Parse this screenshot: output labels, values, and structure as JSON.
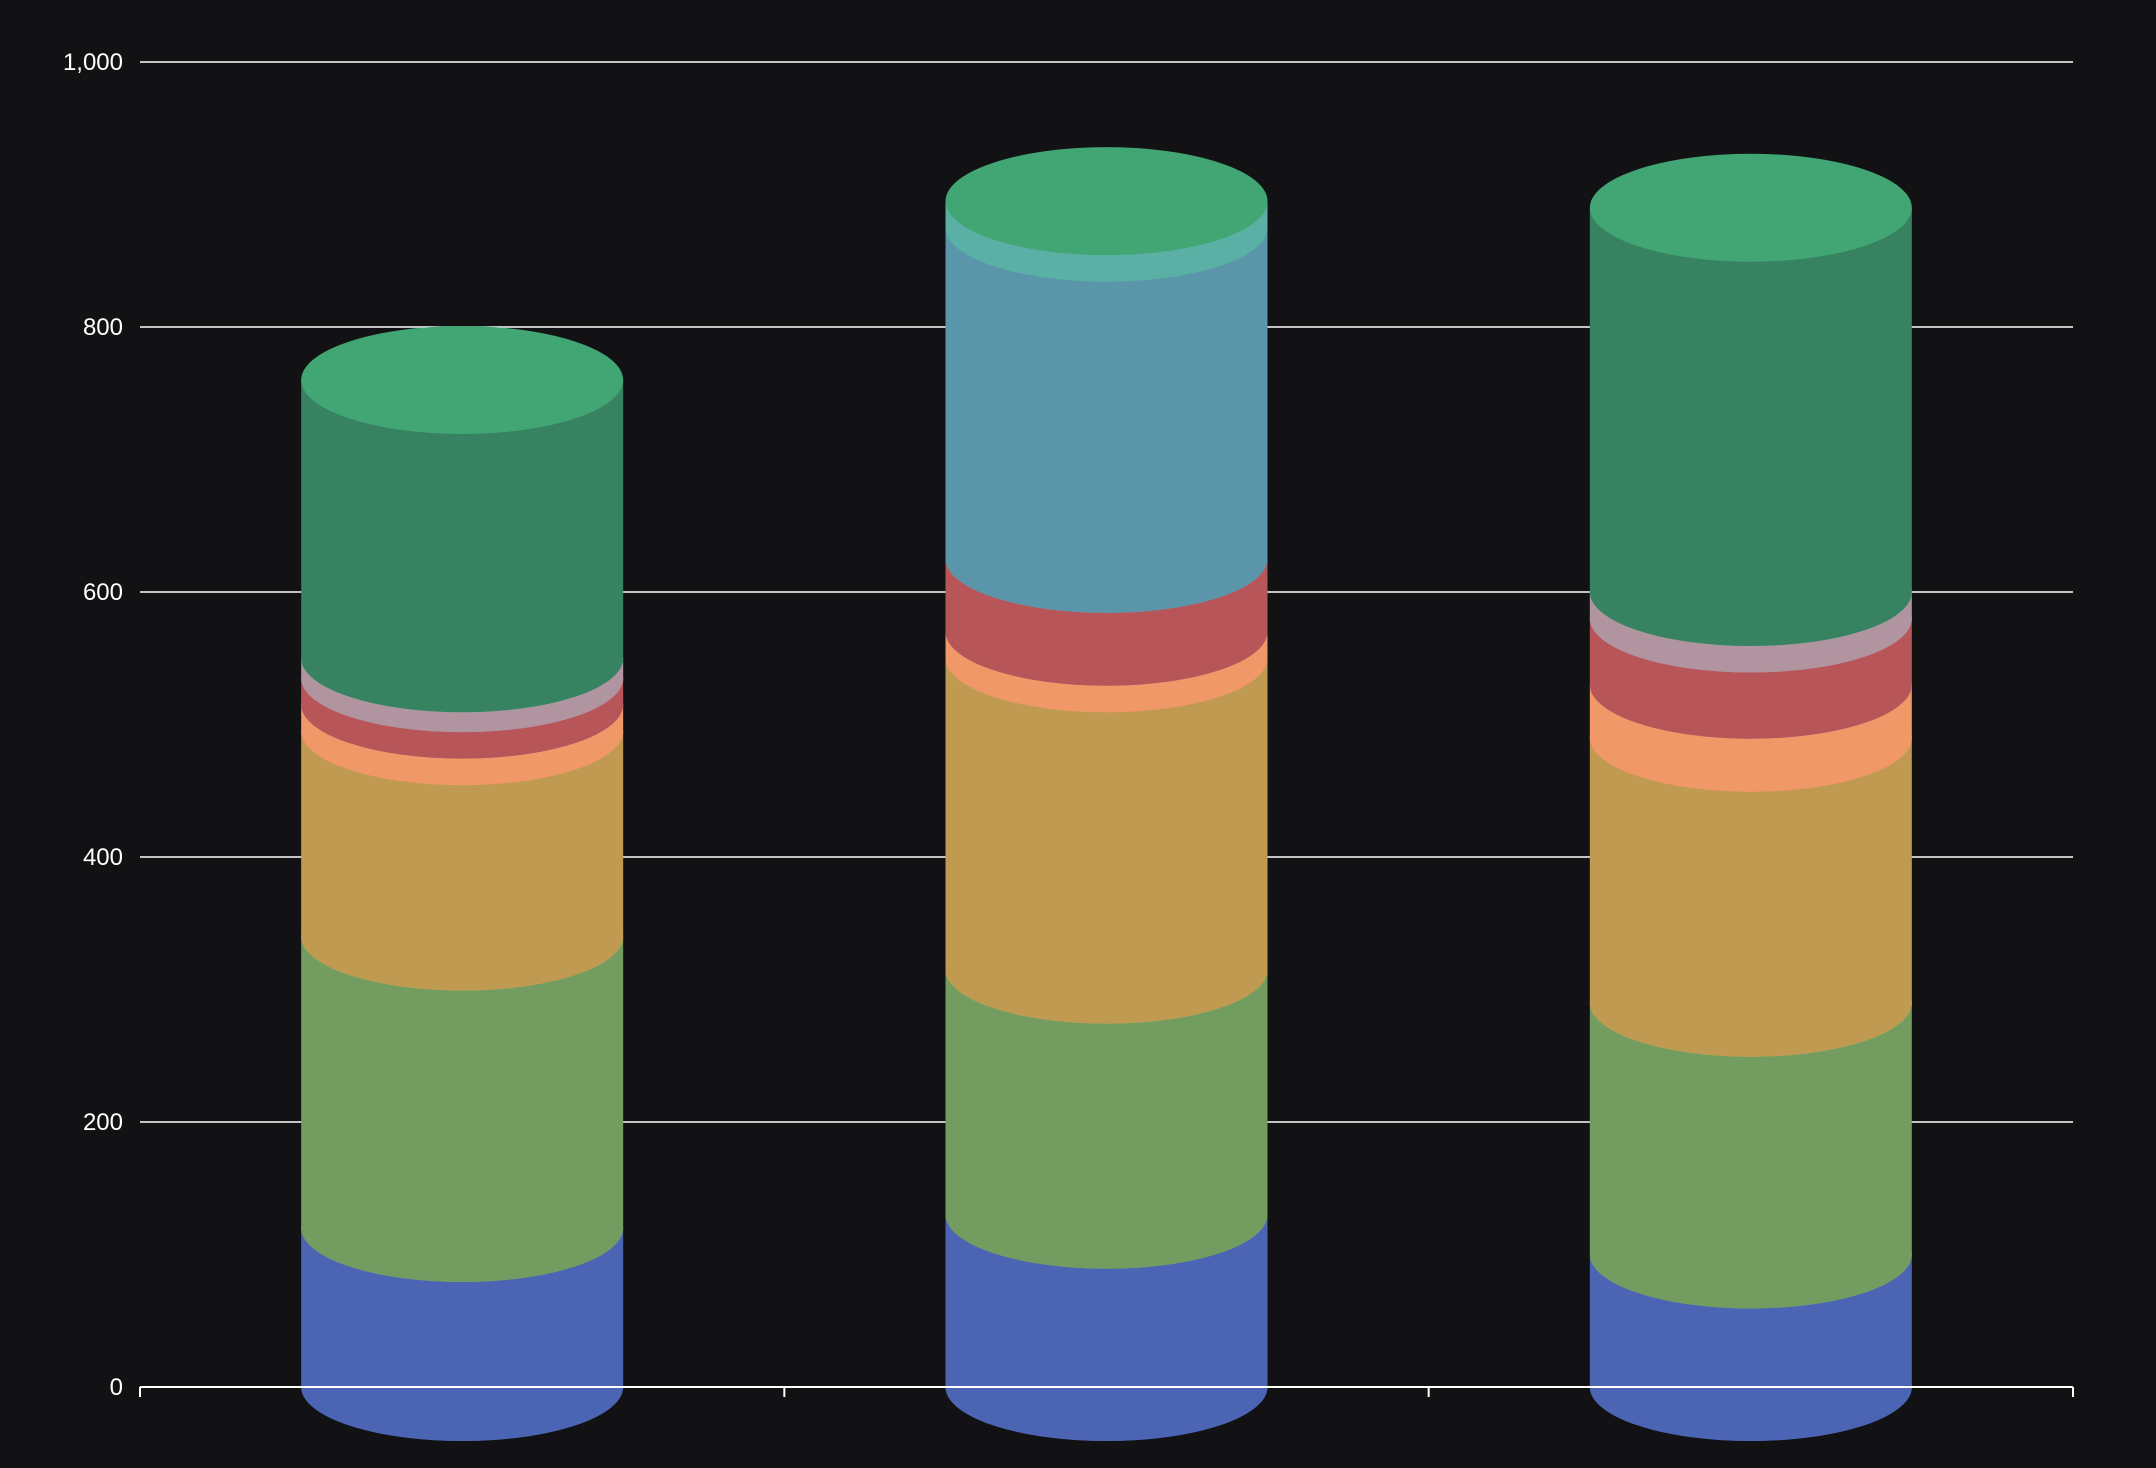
{
  "chart_data": {
    "type": "bar",
    "style": "stacked-3d-cylinder",
    "categories": [
      "",
      "",
      ""
    ],
    "ylim": [
      0,
      1000
    ],
    "yticks": [
      0,
      200,
      400,
      600,
      800,
      1000
    ],
    "ytick_labels": [
      "0",
      "200",
      "400",
      "600",
      "800",
      "1,000"
    ],
    "grid": true,
    "series": [
      {
        "values": [
          120,
          130,
          100
        ],
        "color": "#4b64b4",
        "top_color": "#78a09c"
      },
      {
        "values": [
          220,
          185,
          190
        ],
        "color": "#739c60",
        "top_color": "#c8cb6e"
      },
      {
        "values": [
          155,
          235,
          200
        ],
        "color": "#c09a50",
        "top_color": "#f09868"
      },
      {
        "values": [
          20,
          20,
          40
        ],
        "color": "#f09868",
        "top_color": "#b095a0"
      },
      {
        "values": [
          20,
          55,
          50
        ],
        "color": "#b85559",
        "top_color": "#b095a0"
      },
      {
        "values": [
          15,
          0,
          20
        ],
        "color": "#b095a0",
        "top_color": "#5ab0a5"
      },
      {
        "values": [
          210,
          0,
          290
        ],
        "color": "#378260",
        "top_color": "#42a574"
      },
      {
        "values": [
          0,
          250,
          0
        ],
        "color": "#5b95aa",
        "top_color": "#5ab0a5"
      },
      {
        "values": [
          0,
          20,
          0
        ],
        "color": "#5ab0a5",
        "top_color": "#42a574"
      }
    ],
    "base_color": "#5874c4"
  }
}
